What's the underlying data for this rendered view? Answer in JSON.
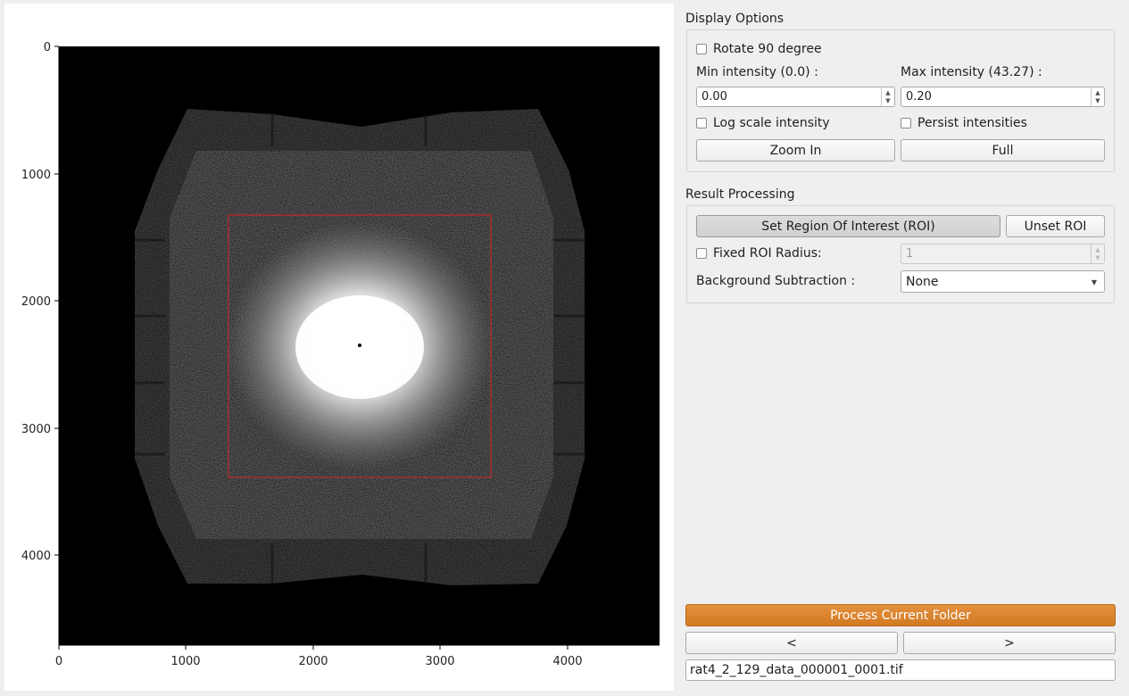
{
  "plot": {
    "x_ticks": [
      "0",
      "1000",
      "2000",
      "3000",
      "4000"
    ],
    "y_ticks": [
      "0",
      "1000",
      "2000",
      "3000",
      "4000"
    ]
  },
  "display_options": {
    "title": "Display Options",
    "rotate_label": "Rotate 90 degree",
    "min_label": "Min intensity (0.0) :",
    "max_label": "Max intensity (43.27) :",
    "min_value": "0.00",
    "max_value": "0.20",
    "log_label": "Log scale intensity",
    "persist_label": "Persist intensities",
    "zoom_in_label": "Zoom In",
    "full_label": "Full"
  },
  "result_processing": {
    "title": "Result Processing",
    "set_roi_label": "Set Region Of Interest (ROI)",
    "unset_roi_label": "Unset ROI",
    "fixed_roi_label": "Fixed ROI Radius:",
    "fixed_roi_value": "1",
    "bg_sub_label": "Background Subtraction :",
    "bg_sub_value": "None"
  },
  "footer": {
    "process_label": "Process Current Folder",
    "prev_label": "<",
    "next_label": ">",
    "filename": "rat4_2_129_data_000001_0001.tif"
  }
}
